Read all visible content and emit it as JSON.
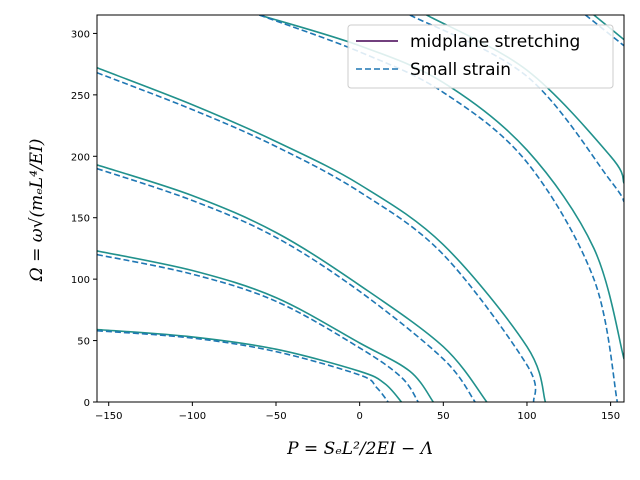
{
  "chart_data": {
    "type": "line",
    "xlabel": "P = SₑL²/2EI − Λ",
    "ylabel": "Ω = ω√(mₑL⁴/EI)",
    "xlim": [
      -157,
      158
    ],
    "ylim": [
      0,
      315
    ],
    "xticks": [
      -150,
      -100,
      -50,
      0,
      50,
      100,
      150
    ],
    "yticks": [
      0,
      50,
      100,
      150,
      200,
      250,
      300
    ],
    "xtick_labels": [
      "−150",
      "−100",
      "−50",
      "0",
      "50",
      "100",
      "150"
    ],
    "ytick_labels": [
      "0",
      "50",
      "100",
      "150",
      "200",
      "250",
      "300"
    ],
    "grid": false,
    "legend_position": "upper right",
    "legend": [
      {
        "label": "midplane stretching",
        "color": "#440154",
        "style": "solid"
      },
      {
        "label": "Small strain",
        "color": "#1f77b4",
        "style": "dashed"
      }
    ],
    "series": [
      {
        "name": "midplane stretching",
        "color": "#21918c",
        "style": "solid",
        "curves": [
          {
            "x": [
              -157,
              -100,
              -50,
              0,
              15,
              25
            ],
            "y": [
              59,
              53,
              43,
              25,
              15,
              0
            ]
          },
          {
            "x": [
              -157,
              -100,
              -50,
              0,
              30,
              44
            ],
            "y": [
              123,
              107,
              85,
              48,
              25,
              0
            ]
          },
          {
            "x": [
              -157,
              -100,
              -50,
              0,
              50,
              76
            ],
            "y": [
              193,
              168,
              138,
              95,
              45,
              0
            ]
          },
          {
            "x": [
              -157,
              -100,
              -50,
              0,
              50,
              100,
              111
            ],
            "y": [
              272,
              242,
              212,
              177,
              128,
              45,
              0
            ]
          },
          {
            "x": [
              -60,
              0,
              50,
              100,
              140,
              158
            ],
            "y": [
              315,
              290,
              260,
              205,
              125,
              35
            ]
          },
          {
            "x": [
              40,
              100,
              150,
              158
            ],
            "y": [
              315,
              270,
              200,
              178
            ]
          },
          {
            "x": [
              140,
              158
            ],
            "y": [
              315,
              295
            ]
          }
        ]
      },
      {
        "name": "Small strain",
        "color": "#1f77b4",
        "style": "dashed",
        "curves": [
          {
            "x": [
              -157,
              -100,
              -50,
              0,
              10,
              17
            ],
            "y": [
              58,
              52,
              41,
              22,
              12,
              0
            ]
          },
          {
            "x": [
              -157,
              -100,
              -50,
              0,
              25,
              35
            ],
            "y": [
              120,
              104,
              82,
              44,
              20,
              0
            ]
          },
          {
            "x": [
              -157,
              -100,
              -50,
              0,
              50,
              69
            ],
            "y": [
              190,
              164,
              134,
              90,
              35,
              0
            ]
          },
          {
            "x": [
              -157,
              -100,
              -50,
              0,
              50,
              100,
              104
            ],
            "y": [
              268,
              238,
              208,
              171,
              120,
              30,
              0
            ]
          },
          {
            "x": [
              -60,
              0,
              50,
              100,
              140,
              154
            ],
            "y": [
              315,
              285,
              252,
              195,
              100,
              0
            ]
          },
          {
            "x": [
              30,
              100,
              150,
              158
            ],
            "y": [
              315,
              265,
              180,
              163
            ]
          },
          {
            "x": [
              135,
              158
            ],
            "y": [
              315,
              290
            ]
          }
        ]
      }
    ]
  }
}
